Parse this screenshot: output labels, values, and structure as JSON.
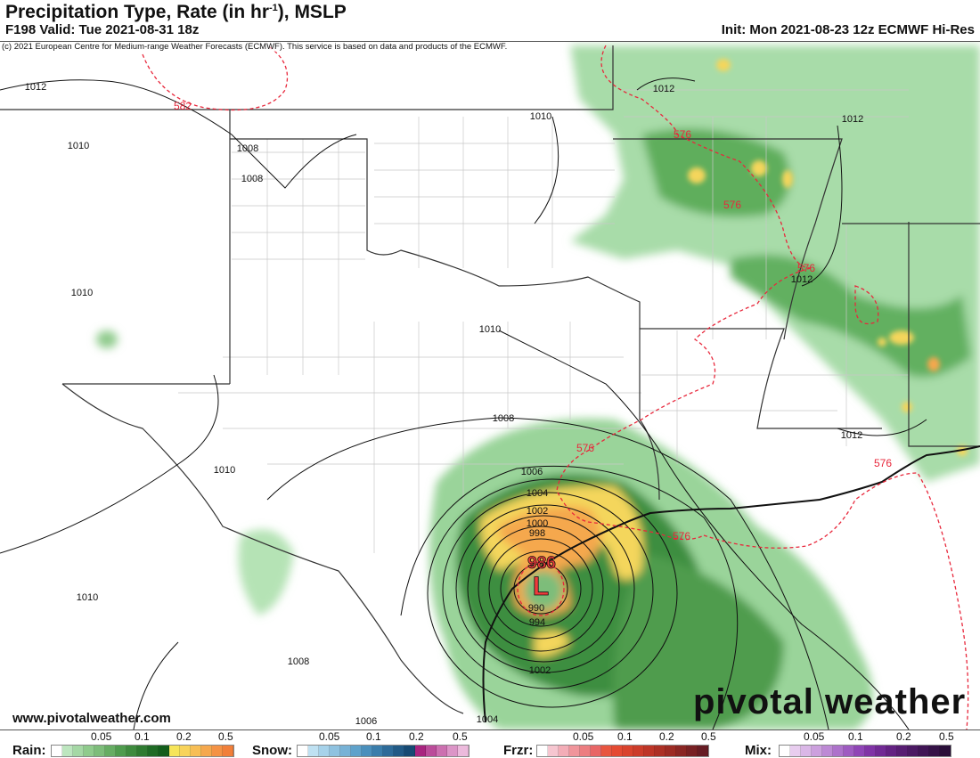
{
  "header": {
    "title": "Precipitation Type, Rate (in hr",
    "title_sup": "-1",
    "title_tail": "), MSLP",
    "valid": "F198 Valid: Tue 2021-08-31 18z",
    "init": "Init: Mon 2021-08-23 12z ECMWF Hi-Res"
  },
  "copyright": "(c) 2021 European Centre for Medium-range Weather Forecasts (ECMWF). This service is based on data and products of the ECMWF.",
  "website": "www.pivotalweather.com",
  "logo": "pivotal weather",
  "map": {
    "low_pressure": {
      "symbol": "L",
      "value": "986"
    },
    "isobar_labels": [
      "1012",
      "1010",
      "1008",
      "1008",
      "1010",
      "1012",
      "1012",
      "1010",
      "1010",
      "1012",
      "1008",
      "1010",
      "1006",
      "1004",
      "1002",
      "1000",
      "998",
      "990",
      "994",
      "1002",
      "1008",
      "1006",
      "1004",
      "1010",
      "1012"
    ],
    "thickness_labels": [
      "582",
      "576",
      "576",
      "576",
      "576",
      "576",
      "576"
    ],
    "colors": {
      "isobar": "#111111",
      "thickness": "#e8283c",
      "low": "#ef3b3b"
    }
  },
  "legend": {
    "rain": {
      "label": "Rain:",
      "ticks": [
        "0.05",
        "0.1",
        "0.2",
        "0.5"
      ],
      "colors": [
        "#ffffff",
        "#bde6bf",
        "#a5d8a5",
        "#8fcb8c",
        "#7dbd7a",
        "#66ad63",
        "#4f9c4e",
        "#3e8b3e",
        "#2f7b31",
        "#1f6b25",
        "#135e1c",
        "#f6e55a",
        "#f8d35a",
        "#f7be55",
        "#f5a84e",
        "#f49245",
        "#f17f3a"
      ]
    },
    "snow": {
      "label": "Snow:",
      "ticks": [
        "0.05",
        "0.1",
        "0.2",
        "0.5"
      ],
      "colors": [
        "#ffffff",
        "#bfe1f2",
        "#a6d2ea",
        "#8fc2e0",
        "#77b2d6",
        "#5fa2cb",
        "#4a8fbc",
        "#3a7dab",
        "#2d6b99",
        "#215a86",
        "#164a73",
        "#a8247f",
        "#bb4c9a",
        "#cc70b0",
        "#dc95c7",
        "#ecbadc"
      ]
    },
    "frzr": {
      "label": "Frzr:",
      "ticks": [
        "0.05",
        "0.1",
        "0.2",
        "0.5"
      ],
      "colors": [
        "#ffffff",
        "#f6c6d0",
        "#f3adb7",
        "#f0959b",
        "#ec7d80",
        "#e86666",
        "#e8553f",
        "#e44a32",
        "#d9432d",
        "#cc3c2a",
        "#bd3527",
        "#ac3025",
        "#9c2b24",
        "#8a2624",
        "#782124",
        "#661c24"
      ]
    },
    "mix": {
      "label": "Mix:",
      "ticks": [
        "0.05",
        "0.1",
        "0.2",
        "0.5"
      ],
      "colors": [
        "#ffffff",
        "#e8cdef",
        "#dab7e7",
        "#cca0de",
        "#bd89d5",
        "#ad72cb",
        "#9e5bc1",
        "#8f45b6",
        "#8034a6",
        "#712a94",
        "#632282",
        "#571d72",
        "#4b1963",
        "#401555",
        "#351247",
        "#2a0f39"
      ]
    }
  }
}
